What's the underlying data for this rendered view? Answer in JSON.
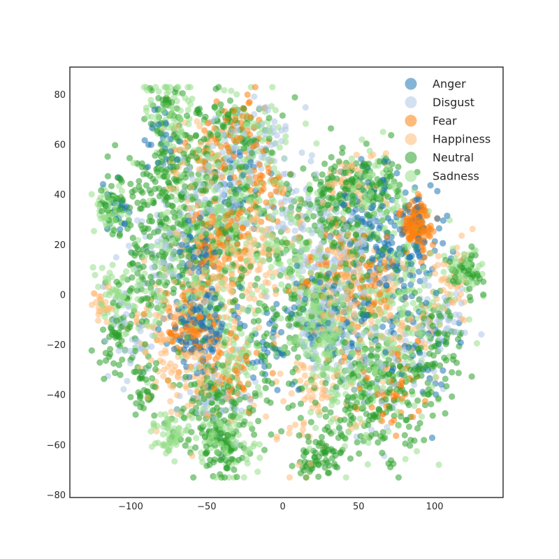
{
  "chart_data": {
    "type": "scatter",
    "title": "",
    "xlabel": "",
    "ylabel": "",
    "xlim": [
      -140,
      145
    ],
    "ylim": [
      -81,
      91
    ],
    "xticks": [
      -100,
      -50,
      0,
      50,
      100
    ],
    "yticks": [
      -80,
      -60,
      -40,
      -20,
      0,
      20,
      40,
      60,
      80
    ],
    "xtick_labels": [
      "−100",
      "−50",
      "0",
      "50",
      "100"
    ],
    "ytick_labels": [
      "−80",
      "−60",
      "−40",
      "−20",
      "0",
      "20",
      "40",
      "60",
      "80"
    ],
    "grid": false,
    "legend_position": "top-right",
    "marker_opacity": 0.55,
    "series": [
      {
        "name": "Anger",
        "color": "#1f77b4",
        "points": 650,
        "clusters": [
          [
            -55,
            -12,
            10,
            7,
            3
          ],
          [
            -55,
            15,
            8,
            6,
            1
          ],
          [
            70,
            10,
            12,
            16,
            2
          ],
          [
            85,
            22,
            10,
            10,
            1.5
          ],
          [
            20,
            -8,
            8,
            8,
            1
          ],
          [
            55,
            40,
            10,
            8,
            1
          ],
          [
            -80,
            60,
            6,
            6,
            0.6
          ],
          [
            -110,
            35,
            5,
            5,
            0.5
          ],
          [
            -10,
            -20,
            10,
            10,
            1
          ],
          [
            40,
            -15,
            10,
            8,
            1
          ],
          [
            -30,
            40,
            12,
            10,
            1
          ],
          [
            95,
            -20,
            10,
            12,
            0.8
          ]
        ]
      },
      {
        "name": "Disgust",
        "color": "#aec7e8",
        "points": 700,
        "clusters": [
          [
            25,
            -5,
            15,
            15,
            2
          ],
          [
            -45,
            40,
            12,
            10,
            1.5
          ],
          [
            -40,
            -40,
            12,
            10,
            1
          ],
          [
            60,
            -30,
            15,
            12,
            1
          ],
          [
            -80,
            20,
            10,
            10,
            1
          ],
          [
            10,
            30,
            10,
            10,
            1
          ],
          [
            100,
            -10,
            12,
            10,
            1
          ],
          [
            -20,
            60,
            12,
            8,
            1
          ],
          [
            50,
            20,
            12,
            10,
            1
          ],
          [
            -100,
            -15,
            8,
            10,
            0.6
          ]
        ]
      },
      {
        "name": "Fear",
        "color": "#ff7f0e",
        "points": 650,
        "clusters": [
          [
            88,
            28,
            5,
            5,
            3
          ],
          [
            -60,
            -12,
            10,
            8,
            2
          ],
          [
            -45,
            20,
            10,
            8,
            1.5
          ],
          [
            -40,
            60,
            10,
            8,
            0.8
          ],
          [
            -35,
            -30,
            10,
            8,
            1
          ],
          [
            70,
            -40,
            10,
            8,
            1
          ],
          [
            -15,
            45,
            10,
            8,
            1
          ],
          [
            30,
            10,
            12,
            10,
            1
          ],
          [
            -25,
            70,
            8,
            6,
            0.6
          ],
          [
            60,
            5,
            8,
            8,
            1
          ]
        ]
      },
      {
        "name": "Happiness",
        "color": "#ffbb78",
        "points": 800,
        "clusters": [
          [
            40,
            5,
            15,
            15,
            2
          ],
          [
            -45,
            10,
            15,
            12,
            2
          ],
          [
            -50,
            -30,
            12,
            10,
            1.5
          ],
          [
            80,
            -10,
            12,
            12,
            1
          ],
          [
            -10,
            20,
            12,
            12,
            1
          ],
          [
            -80,
            -20,
            10,
            12,
            1
          ],
          [
            20,
            -40,
            12,
            12,
            1
          ],
          [
            -60,
            55,
            12,
            10,
            1
          ],
          [
            110,
            5,
            8,
            10,
            0.6
          ],
          [
            45,
            45,
            10,
            8,
            0.8
          ],
          [
            -120,
            -3,
            4,
            4,
            0.4
          ]
        ]
      },
      {
        "name": "Neutral",
        "color": "#2ca02c",
        "points": 1700,
        "clusters": [
          [
            -50,
            25,
            20,
            18,
            3
          ],
          [
            -40,
            -45,
            15,
            12,
            2
          ],
          [
            60,
            -40,
            20,
            15,
            2.5
          ],
          [
            40,
            20,
            20,
            15,
            2
          ],
          [
            -80,
            45,
            12,
            12,
            1.5
          ],
          [
            0,
            -10,
            15,
            15,
            1.5
          ],
          [
            -40,
            65,
            15,
            8,
            1.5
          ],
          [
            100,
            -20,
            12,
            12,
            1.2
          ],
          [
            25,
            -65,
            8,
            5,
            1
          ],
          [
            -40,
            -62,
            8,
            6,
            1
          ],
          [
            -110,
            35,
            5,
            5,
            0.6
          ],
          [
            -110,
            -15,
            6,
            8,
            0.8
          ],
          [
            120,
            10,
            6,
            4,
            0.5
          ],
          [
            -90,
            -35,
            6,
            6,
            0.6
          ],
          [
            -75,
            75,
            6,
            4,
            0.5
          ],
          [
            60,
            45,
            10,
            6,
            1
          ],
          [
            -95,
            10,
            8,
            12,
            1
          ],
          [
            30,
            40,
            10,
            8,
            1
          ]
        ]
      },
      {
        "name": "Sadness",
        "color": "#98df8a",
        "points": 1600,
        "clusters": [
          [
            -45,
            35,
            20,
            18,
            3
          ],
          [
            25,
            -12,
            8,
            8,
            2.5
          ],
          [
            -40,
            -55,
            12,
            10,
            1.5
          ],
          [
            50,
            -30,
            20,
            15,
            2
          ],
          [
            -70,
            0,
            15,
            15,
            1.5
          ],
          [
            -75,
            70,
            8,
            10,
            1
          ],
          [
            -110,
            0,
            6,
            5,
            0.7
          ],
          [
            -115,
            35,
            5,
            5,
            0.6
          ],
          [
            10,
            20,
            15,
            12,
            1.5
          ],
          [
            80,
            0,
            15,
            15,
            1.5
          ],
          [
            -20,
            60,
            15,
            10,
            1
          ],
          [
            -75,
            -55,
            5,
            4,
            0.6
          ],
          [
            120,
            10,
            6,
            5,
            0.5
          ],
          [
            60,
            40,
            10,
            8,
            1
          ],
          [
            -30,
            -20,
            12,
            10,
            1
          ]
        ]
      }
    ]
  }
}
